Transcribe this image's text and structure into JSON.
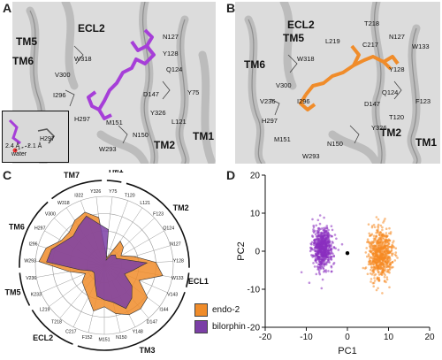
{
  "panels": {
    "A": {
      "letter": "A",
      "helices": [
        "TM5",
        "TM6",
        "ECL2",
        "TM2",
        "TM1"
      ],
      "residues": [
        "N127",
        "Y128",
        "W318",
        "Q124",
        "V300",
        "I296",
        "D147",
        "Y75",
        "H297",
        "Y326",
        "L121",
        "M151",
        "N150",
        "W293"
      ],
      "inset": {
        "dist1": "2.4 Å",
        "dist2": "2.1 Å",
        "water": "water",
        "residue": "H297"
      },
      "ligand_color": "#a63fd8"
    },
    "B": {
      "letter": "B",
      "helices": [
        "ECL2",
        "TM5",
        "TM6",
        "TM2",
        "TM1"
      ],
      "residues": [
        "T218",
        "L219",
        "C217",
        "N127",
        "W133",
        "W318",
        "Y128",
        "V300",
        "V236",
        "I296",
        "Q124",
        "F123",
        "D147",
        "H297",
        "T120",
        "Y326",
        "M151",
        "N150",
        "W293"
      ],
      "ligand_color": "#f08c2a"
    },
    "C": {
      "letter": "C"
    },
    "D": {
      "letter": "D"
    }
  },
  "chart_data": [
    {
      "type": "radar",
      "segments": [
        {
          "label": "TM1",
          "residues": [
            "Y75"
          ]
        },
        {
          "label": "TM2",
          "residues": [
            "T120",
            "L121",
            "F123",
            "Q124",
            "N127",
            "Y128"
          ]
        },
        {
          "label": "ECL1",
          "residues": [
            "W133"
          ]
        },
        {
          "label": "TM3",
          "residues": [
            "V143",
            "I144",
            "D147",
            "Y148",
            "N150",
            "M151",
            "F152"
          ]
        },
        {
          "label": "ECL2",
          "residues": [
            "C217",
            "T218",
            "L219"
          ]
        },
        {
          "label": "TM5",
          "residues": [
            "K233",
            "V236"
          ]
        },
        {
          "label": "TM6",
          "residues": [
            "W293",
            "I296",
            "H297",
            "V300"
          ]
        },
        {
          "label": "TM7",
          "residues": [
            "W318",
            "I322",
            "Y326"
          ]
        }
      ],
      "axes": [
        "Y75",
        "T120",
        "L121",
        "F123",
        "Q124",
        "N127",
        "Y128",
        "W133",
        "V143",
        "I144",
        "D147",
        "Y148",
        "N150",
        "M151",
        "F152",
        "C217",
        "T218",
        "L219",
        "K233",
        "V236",
        "W293",
        "I296",
        "H297",
        "V300",
        "W318",
        "I322",
        "Y326"
      ],
      "series": [
        {
          "name": "endo-2",
          "color": "#f08c2a",
          "values": [
            0.18,
            0.12,
            0.42,
            0.38,
            0.28,
            0.45,
            0.75,
            0.86,
            0.55,
            0.78,
            0.82,
            0.8,
            0.72,
            0.6,
            0.68,
            0.52,
            0.44,
            0.4,
            0.3,
            0.52,
            0.95,
            0.88,
            0.72,
            0.7,
            0.78,
            0.82,
            0.7
          ]
        },
        {
          "name": "bilorphin",
          "color": "#7b3fa6",
          "values": [
            0.52,
            0.08,
            0.18,
            0.22,
            0.2,
            0.3,
            0.62,
            0.42,
            0.32,
            0.5,
            0.62,
            0.7,
            0.55,
            0.5,
            0.46,
            0.3,
            0.22,
            0.18,
            0.2,
            0.36,
            0.84,
            0.8,
            0.68,
            0.62,
            0.68,
            0.76,
            0.6
          ]
        }
      ]
    },
    {
      "type": "scatter",
      "xlabel": "PC1",
      "ylabel": "PC2",
      "xlim": [
        -20,
        20
      ],
      "ylim": [
        -20,
        20
      ],
      "xticks": [
        -20,
        -10,
        0,
        10,
        20
      ],
      "yticks": [
        -20,
        -10,
        0,
        10,
        20
      ],
      "series": [
        {
          "name": "bilorphin",
          "color": "#8a2fc0",
          "center": [
            -6,
            0.8
          ],
          "spread": [
            2.2,
            4.2
          ]
        },
        {
          "name": "endo-2",
          "color": "#f58a24",
          "center": [
            8,
            -0.8
          ],
          "spread": [
            2.6,
            5.2
          ]
        }
      ],
      "marker": {
        "x": 0,
        "y": -0.5,
        "color": "#000000"
      }
    }
  ]
}
